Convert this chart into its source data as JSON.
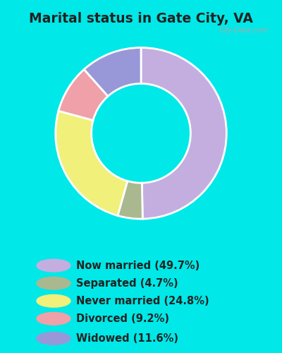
{
  "title": "Marital status in Gate City, VA",
  "background_cyan": "#00e8e8",
  "background_chart": "#cceedd",
  "slices": [
    {
      "label": "Now married (49.7%)",
      "value": 49.7,
      "color": "#c4aee0"
    },
    {
      "label": "Separated (4.7%)",
      "value": 4.7,
      "color": "#aab890"
    },
    {
      "label": "Never married (24.8%)",
      "value": 24.8,
      "color": "#f0f07a"
    },
    {
      "label": "Divorced (9.2%)",
      "value": 9.2,
      "color": "#f0a0a8"
    },
    {
      "label": "Widowed (11.6%)",
      "value": 11.6,
      "color": "#9898d8"
    }
  ],
  "donut_width": 0.42,
  "legend_colors": [
    "#c4aee0",
    "#aab890",
    "#f0f07a",
    "#f0a0a8",
    "#9898d8"
  ],
  "legend_labels": [
    "Now married (49.7%)",
    "Separated (4.7%)",
    "Never married (24.8%)",
    "Divorced (9.2%)",
    "Widowed (11.6%)"
  ],
  "title_fontsize": 13.5,
  "legend_fontsize": 10.5,
  "title_color": "#222222",
  "legend_text_color": "#222222"
}
